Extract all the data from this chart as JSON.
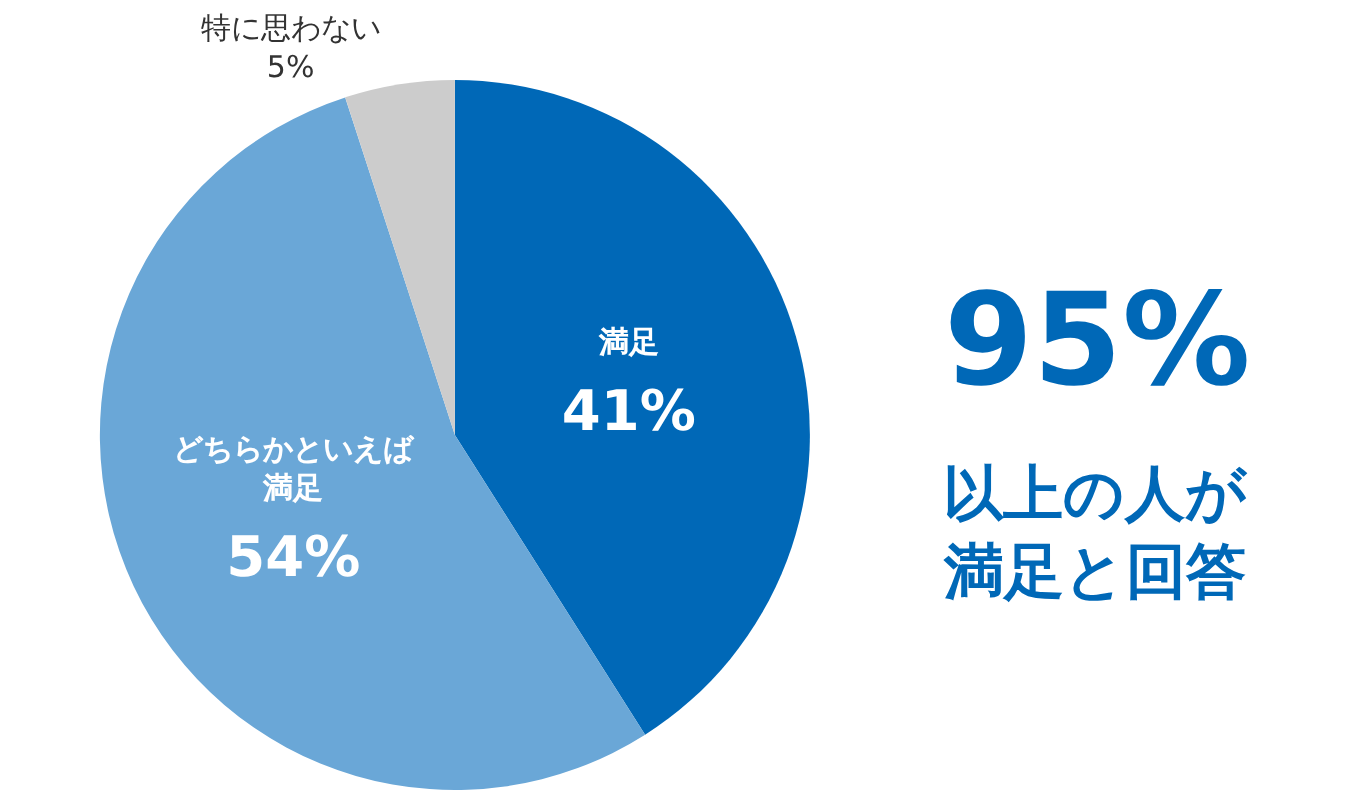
{
  "chart_data": {
    "type": "pie",
    "categories": [
      "満足",
      "どちらかといえば満足",
      "特に思わない"
    ],
    "values": [
      41,
      54,
      5
    ],
    "colors": [
      "#0068b7",
      "#6aa7d7",
      "#cccccc"
    ],
    "value_labels": [
      "41%",
      "54%",
      "5%"
    ],
    "legend": false,
    "annotations": [
      "95%",
      "以上の人が満足と回答"
    ]
  }
}
